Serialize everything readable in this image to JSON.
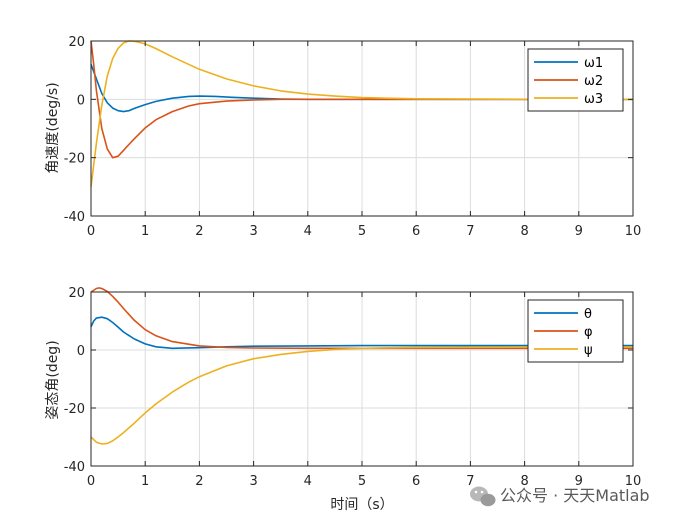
{
  "chart_data": [
    {
      "type": "line",
      "xlabel": "",
      "ylabel": "角速度(deg/s)",
      "xlim": [
        0,
        10
      ],
      "ylim": [
        -40,
        20
      ],
      "xticks": [
        "0",
        "1",
        "2",
        "3",
        "4",
        "5",
        "6",
        "7",
        "8",
        "9",
        "10"
      ],
      "yticks": [
        "20",
        "0",
        "-20",
        "-40"
      ],
      "grid": true,
      "legend_position": "top-right",
      "series": [
        {
          "name": "ω1",
          "color": "#0072BD",
          "x": [
            0,
            0.1,
            0.2,
            0.3,
            0.4,
            0.5,
            0.6,
            0.7,
            0.8,
            1.0,
            1.2,
            1.5,
            1.8,
            2.0,
            2.3,
            2.6,
            3.0,
            3.5,
            4.0,
            5.0,
            6.0,
            8.0,
            10.0
          ],
          "y": [
            12,
            7,
            2,
            -1.2,
            -3.0,
            -3.9,
            -4.2,
            -3.9,
            -3.1,
            -1.8,
            -0.7,
            0.4,
            1.0,
            1.1,
            1.0,
            0.7,
            0.4,
            0.1,
            0,
            0,
            0,
            0,
            0
          ]
        },
        {
          "name": "ω2",
          "color": "#D95319",
          "x": [
            0,
            0.05,
            0.1,
            0.2,
            0.3,
            0.4,
            0.5,
            0.6,
            0.7,
            0.8,
            1.0,
            1.2,
            1.5,
            1.8,
            2.0,
            2.5,
            3.0,
            3.5,
            4.0,
            5.0,
            6.0,
            8.0,
            10.0
          ],
          "y": [
            20,
            12,
            3,
            -10,
            -17,
            -20,
            -19.5,
            -17.5,
            -15.5,
            -13.5,
            -9.8,
            -7,
            -4.2,
            -2.3,
            -1.5,
            -0.6,
            -0.2,
            0,
            0,
            0,
            0,
            0,
            0
          ]
        },
        {
          "name": "ω3",
          "color": "#EDB120",
          "x": [
            0,
            0.1,
            0.2,
            0.3,
            0.4,
            0.5,
            0.6,
            0.7,
            0.8,
            0.9,
            1.0,
            1.2,
            1.5,
            2.0,
            2.5,
            3.0,
            3.5,
            4.0,
            4.5,
            5.0,
            6.0,
            8.0,
            10.0
          ],
          "y": [
            -30,
            -15,
            -2,
            8,
            14,
            17.5,
            19.3,
            20,
            19.9,
            19.5,
            19,
            17.4,
            14.6,
            10.3,
            7,
            4.6,
            2.9,
            1.8,
            1.1,
            0.6,
            0.2,
            0,
            0
          ]
        }
      ]
    },
    {
      "type": "line",
      "xlabel": "时间（s）",
      "ylabel": "姿态角(deg)",
      "xlim": [
        0,
        10
      ],
      "ylim": [
        -40,
        20
      ],
      "xticks": [
        "0",
        "1",
        "2",
        "3",
        "4",
        "5",
        "6",
        "7",
        "8",
        "9",
        "10"
      ],
      "yticks": [
        "20",
        "0",
        "-20",
        "-40"
      ],
      "grid": true,
      "legend_position": "top-right",
      "series": [
        {
          "name": "θ",
          "color": "#0072BD",
          "x": [
            0,
            0.05,
            0.1,
            0.2,
            0.3,
            0.4,
            0.5,
            0.6,
            0.8,
            1.0,
            1.2,
            1.5,
            2.0,
            2.5,
            3.0,
            4.0,
            5.0,
            6.0,
            8.0,
            10.0
          ],
          "y": [
            8,
            10,
            11,
            11.3,
            10.8,
            9.5,
            7.9,
            6.2,
            3.8,
            2.1,
            1.1,
            0.6,
            0.8,
            1.1,
            1.3,
            1.4,
            1.5,
            1.5,
            1.5,
            1.5
          ]
        },
        {
          "name": "φ",
          "color": "#D95319",
          "x": [
            0,
            0.1,
            0.15,
            0.2,
            0.3,
            0.4,
            0.5,
            0.6,
            0.8,
            1.0,
            1.2,
            1.5,
            2.0,
            2.5,
            3.0,
            4.0,
            5.0,
            6.0,
            8.0,
            10.0
          ],
          "y": [
            20,
            21.2,
            21.4,
            21.2,
            20.2,
            18.5,
            16.5,
            14.3,
            10.2,
            7,
            4.9,
            2.9,
            1.4,
            0.9,
            0.7,
            0.6,
            0.6,
            0.6,
            0.6,
            0.6
          ]
        },
        {
          "name": "ψ",
          "color": "#EDB120",
          "x": [
            0,
            0.1,
            0.2,
            0.3,
            0.4,
            0.5,
            0.6,
            0.8,
            1.0,
            1.2,
            1.5,
            1.8,
            2.0,
            2.5,
            3.0,
            3.5,
            4.0,
            4.5,
            5.0,
            6.0,
            8.0,
            10.0
          ],
          "y": [
            -30,
            -31.8,
            -32.4,
            -32.2,
            -31.3,
            -30,
            -28.5,
            -25.2,
            -21.7,
            -18.6,
            -14.5,
            -11.1,
            -9.2,
            -5.5,
            -3,
            -1.5,
            -0.5,
            0.2,
            0.6,
            0.9,
            1.0,
            1.0
          ]
        }
      ]
    }
  ],
  "watermark": {
    "icon": "wechat-icon",
    "text": "公众号 · 天天Matlab"
  }
}
